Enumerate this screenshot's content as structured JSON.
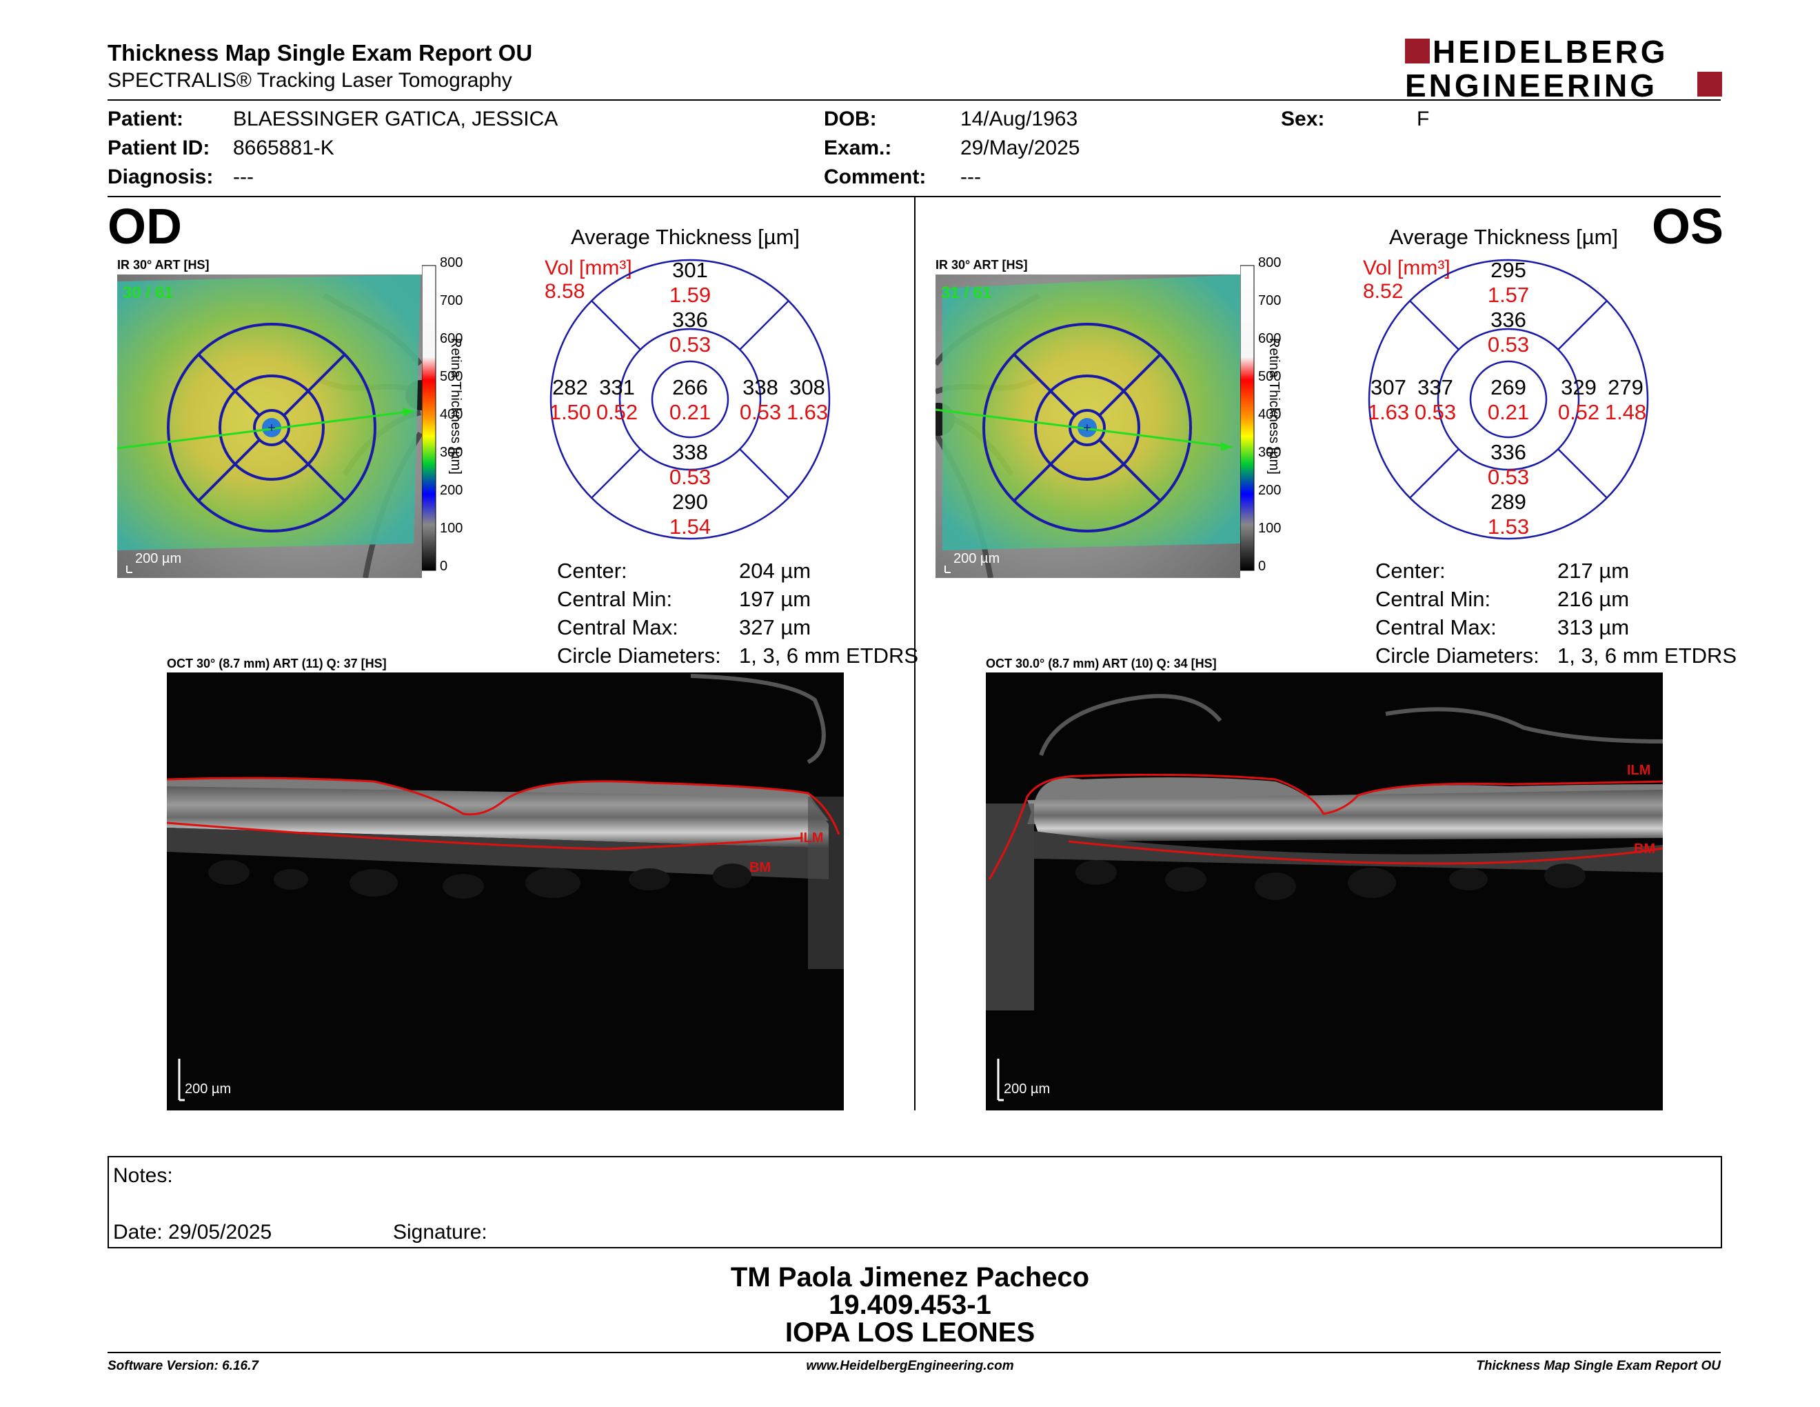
{
  "header": {
    "title": "Thickness Map Single Exam Report OU",
    "subtitle": "SPECTRALIS® Tracking Laser Tomography",
    "logo_line1": "HEIDELBERG",
    "logo_line2": "ENGINEERING"
  },
  "patient": {
    "patient_label": "Patient:",
    "patient_value": "BLAESSINGER GATICA, JESSICA",
    "id_label": "Patient ID:",
    "id_value": "8665881-K",
    "diagnosis_label": "Diagnosis:",
    "diagnosis_value": "---",
    "dob_label": "DOB:",
    "dob_value": "14/Aug/1963",
    "exam_label": "Exam.:",
    "exam_value": "29/May/2025",
    "comment_label": "Comment:",
    "comment_value": "---",
    "sex_label": "Sex:",
    "sex_value": "F"
  },
  "colorbar": {
    "title": "Retina Thickness [µm]",
    "ticks": [
      "800",
      "700",
      "600",
      "500",
      "400",
      "300",
      "200",
      "100",
      "0"
    ]
  },
  "od": {
    "eye_label": "OD",
    "ir_label": "IR 30° ART [HS]",
    "ir_overlay": "30 / 61",
    "scale_label": "200 µm",
    "avg_title": "Average Thickness [µm]",
    "vol_label": "Vol [mm³]",
    "vol_value": "8.58",
    "sectors": {
      "center": {
        "t": "266",
        "v": "0.21"
      },
      "inner_sup": {
        "t": "336",
        "v": "0.53"
      },
      "inner_inf": {
        "t": "338",
        "v": "0.53"
      },
      "inner_left": {
        "t": "331",
        "v": "0.52"
      },
      "inner_right": {
        "t": "338",
        "v": "0.53"
      },
      "outer_sup": {
        "t": "301",
        "v": "1.59"
      },
      "outer_inf": {
        "t": "290",
        "v": "1.54"
      },
      "outer_left": {
        "t": "282",
        "v": "1.50"
      },
      "outer_right": {
        "t": "308",
        "v": "1.63"
      }
    },
    "stats": [
      {
        "label": "Center:",
        "value": "204 µm"
      },
      {
        "label": "Central Min:",
        "value": "197 µm"
      },
      {
        "label": "Central Max:",
        "value": "327 µm"
      },
      {
        "label": "Circle Diameters:",
        "value": "1, 3, 6 mm ETDRS"
      }
    ],
    "oct_label": "OCT 30° (8.7 mm) ART (11) Q: 37 [HS]",
    "oct_scale": "200 µm",
    "ilm": "ILM",
    "bm": "BM"
  },
  "os": {
    "eye_label": "OS",
    "ir_label": "IR 30° ART [HS]",
    "ir_overlay": "31 / 61",
    "scale_label": "200 µm",
    "avg_title": "Average Thickness [µm]",
    "vol_label": "Vol [mm³]",
    "vol_value": "8.52",
    "sectors": {
      "center": {
        "t": "269",
        "v": "0.21"
      },
      "inner_sup": {
        "t": "336",
        "v": "0.53"
      },
      "inner_inf": {
        "t": "336",
        "v": "0.53"
      },
      "inner_left": {
        "t": "337",
        "v": "0.53"
      },
      "inner_right": {
        "t": "329",
        "v": "0.52"
      },
      "outer_sup": {
        "t": "295",
        "v": "1.57"
      },
      "outer_inf": {
        "t": "289",
        "v": "1.53"
      },
      "outer_left": {
        "t": "307",
        "v": "1.63"
      },
      "outer_right": {
        "t": "279",
        "v": "1.48"
      }
    },
    "stats": [
      {
        "label": "Center:",
        "value": "217 µm"
      },
      {
        "label": "Central Min:",
        "value": "216 µm"
      },
      {
        "label": "Central Max:",
        "value": "313 µm"
      },
      {
        "label": "Circle Diameters:",
        "value": "1, 3, 6 mm ETDRS"
      }
    ],
    "oct_label": "OCT 30.0° (8.7 mm) ART (10) Q: 34 [HS]",
    "oct_scale": "200 µm",
    "ilm": "ILM",
    "bm": "BM"
  },
  "notes": {
    "notes_label": "Notes:",
    "date_label": "Date: 29/05/2025",
    "signature_label": "Signature:"
  },
  "signature_block": {
    "name": "TM Paola Jimenez Pacheco",
    "rut": "19.409.453-1",
    "institution": "IOPA LOS LEONES"
  },
  "footer": {
    "software": "Software Version: 6.16.7",
    "website": "www.HeidelbergEngineering.com",
    "report": "Thickness Map Single Exam Report OU"
  },
  "colors": {
    "brand_red": "#9b1b2b",
    "etdrs_blue": "#1a1aa8",
    "volume_red": "#e01010",
    "ilm_red": "#dd1010",
    "overlay_green": "#22dd22"
  }
}
